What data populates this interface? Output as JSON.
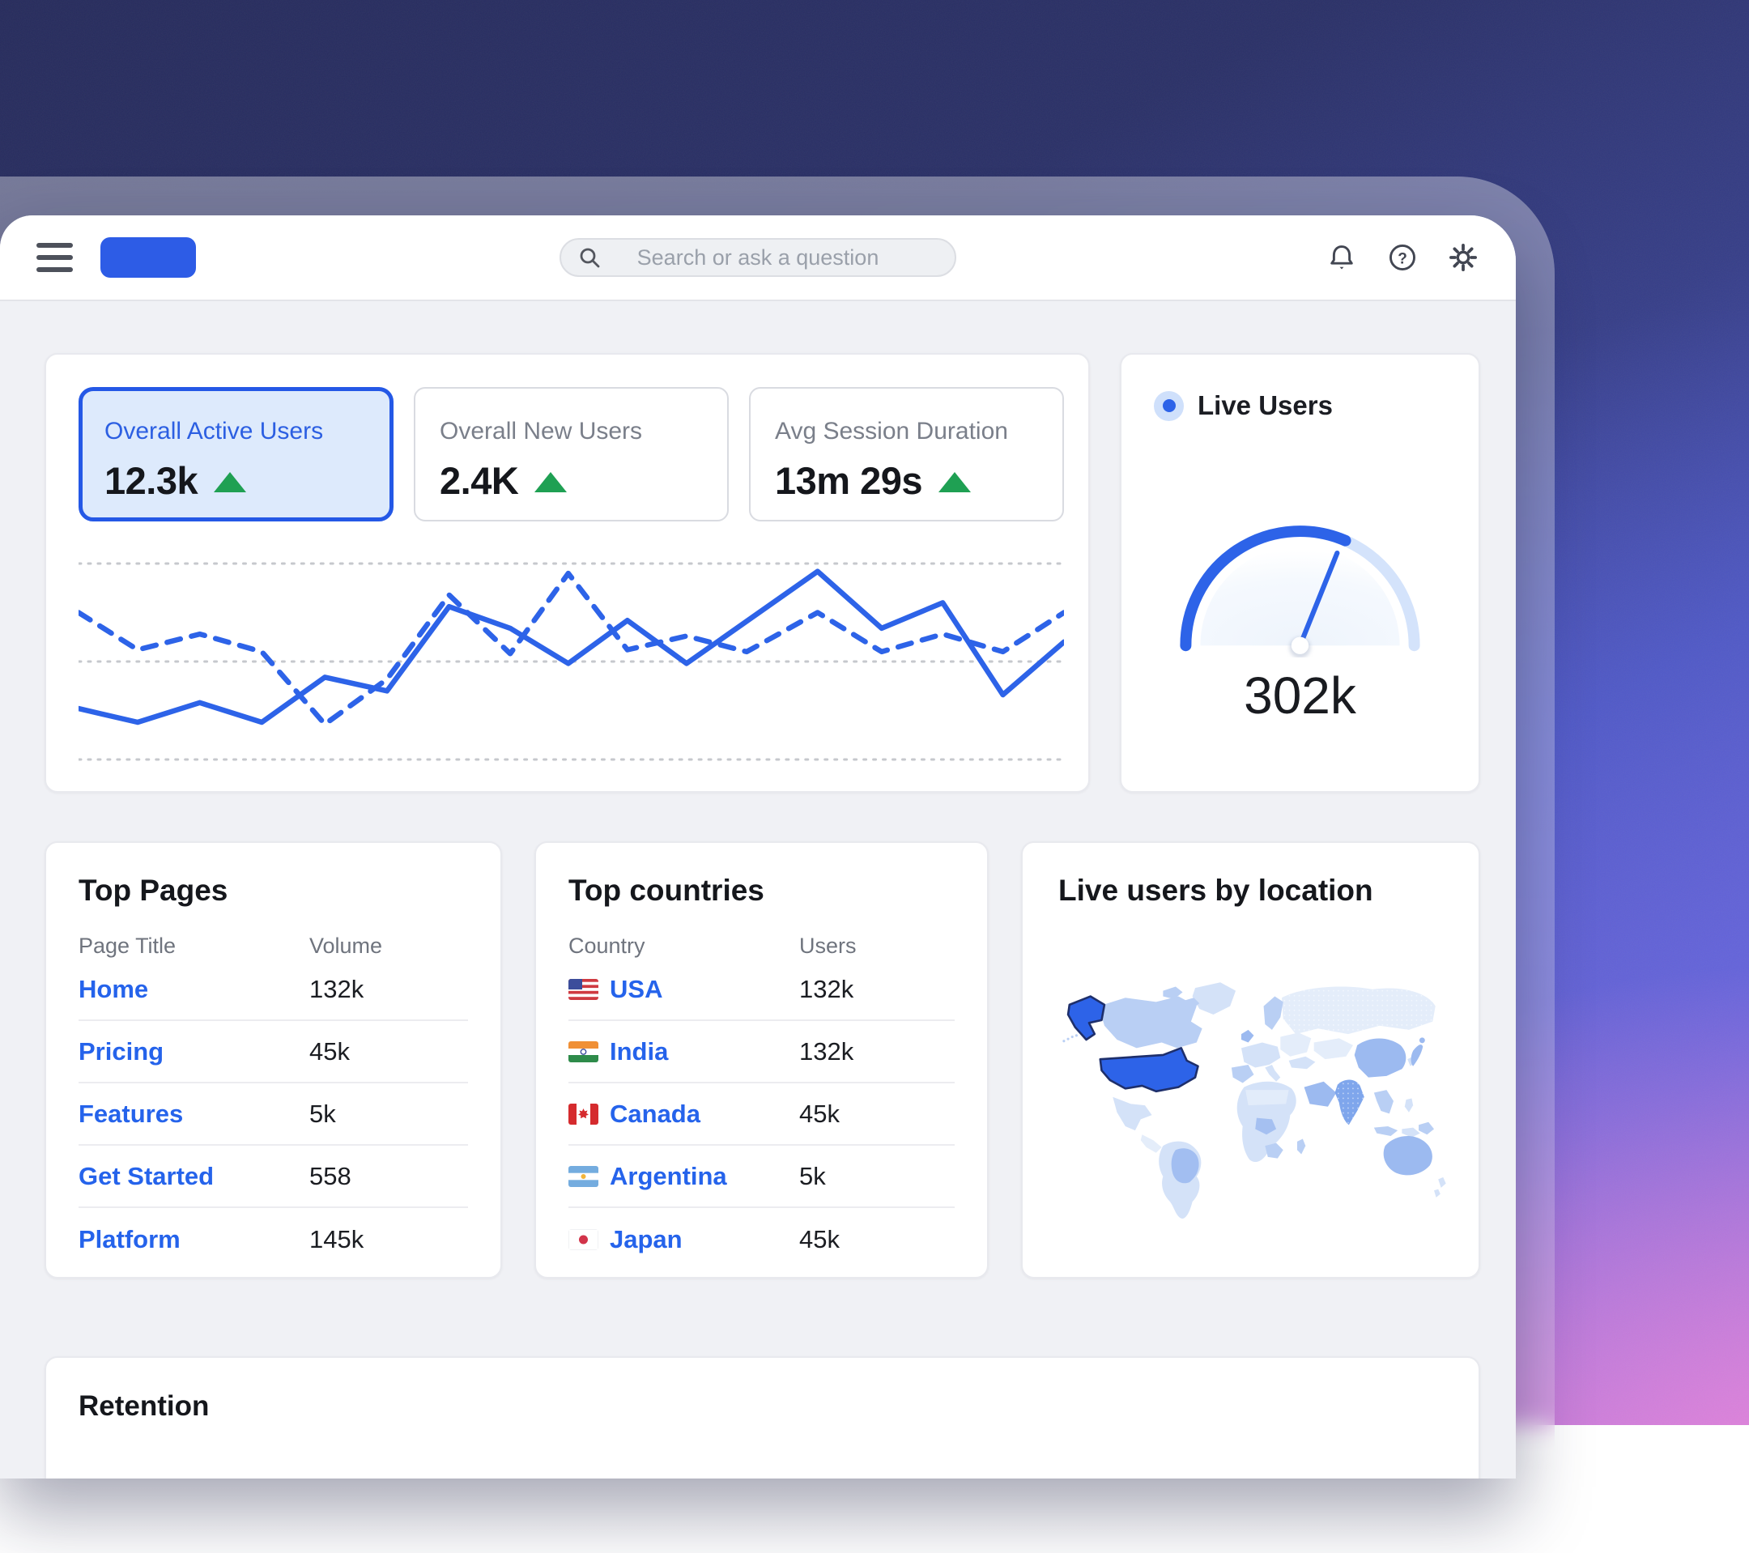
{
  "header": {
    "search_placeholder": "Search or ask a question"
  },
  "kpis": [
    {
      "label": "Overall Active Users",
      "value": "12.3k",
      "trend": "up",
      "selected": true
    },
    {
      "label": "Overall New Users",
      "value": "2.4K",
      "trend": "up",
      "selected": false
    },
    {
      "label": "Avg Session Duration",
      "value": "13m 29s",
      "trend": "up",
      "selected": false
    }
  ],
  "live_users": {
    "legend": "Live Users",
    "value": "302k"
  },
  "top_pages": {
    "title": "Top Pages",
    "columns": [
      "Page Title",
      "Volume"
    ],
    "rows": [
      {
        "name": "Home",
        "value": "132k"
      },
      {
        "name": "Pricing",
        "value": "45k"
      },
      {
        "name": "Features",
        "value": "5k"
      },
      {
        "name": "Get Started",
        "value": "558"
      },
      {
        "name": "Platform",
        "value": "145k"
      }
    ]
  },
  "top_countries": {
    "title": "Top countries",
    "columns": [
      "Country",
      "Users"
    ],
    "rows": [
      {
        "flag": "usa",
        "name": "USA",
        "value": "132k"
      },
      {
        "flag": "india",
        "name": "India",
        "value": "132k"
      },
      {
        "flag": "canada",
        "name": "Canada",
        "value": "45k"
      },
      {
        "flag": "argentina",
        "name": "Argentina",
        "value": "5k"
      },
      {
        "flag": "japan",
        "name": "Japan",
        "value": "45k"
      }
    ]
  },
  "map": {
    "title": "Live users by location",
    "highlight_country": "USA"
  },
  "retention": {
    "title": "Retention"
  },
  "colors": {
    "accent_blue": "#2d63e8",
    "link_blue": "#2563eb",
    "selected_chip_bg": "#ddeafc",
    "selected_chip_border": "#2458e6",
    "trend_green": "#1fa053",
    "gauge_track": "#d4e3fb"
  },
  "chart_data": [
    {
      "type": "line",
      "title": "Overall Active Users trend",
      "xlabel": "",
      "ylabel": "",
      "ylim": [
        0,
        100
      ],
      "gridlines": [
        0,
        50,
        100
      ],
      "legend": "none",
      "series": [
        {
          "style": "solid",
          "points": [
            [
              0,
              26
            ],
            [
              6,
              19
            ],
            [
              12.3,
              29
            ],
            [
              18.6,
              19
            ],
            [
              25,
              42
            ],
            [
              31.3,
              35
            ],
            [
              37.6,
              78
            ],
            [
              43.8,
              67
            ],
            [
              49.7,
              49
            ],
            [
              55.7,
              71
            ],
            [
              61.7,
              49
            ],
            [
              75,
              96
            ],
            [
              81.5,
              67
            ],
            [
              87.7,
              80
            ],
            [
              93.8,
              33
            ],
            [
              100,
              60
            ]
          ]
        },
        {
          "style": "dashed",
          "points": [
            [
              0,
              75
            ],
            [
              6,
              56
            ],
            [
              12.3,
              64
            ],
            [
              18.6,
              55
            ],
            [
              25,
              18
            ],
            [
              31.3,
              41
            ],
            [
              37.6,
              84
            ],
            [
              43.8,
              54
            ],
            [
              49.7,
              95
            ],
            [
              55.7,
              56
            ],
            [
              61.7,
              63
            ],
            [
              67.8,
              55
            ],
            [
              75,
              75
            ],
            [
              81.5,
              55
            ],
            [
              87.7,
              64
            ],
            [
              93.8,
              55
            ],
            [
              100,
              75
            ]
          ]
        }
      ]
    },
    {
      "type": "gauge",
      "label": "Live Users",
      "value_label": "302k",
      "percent_filled": 63
    }
  ]
}
